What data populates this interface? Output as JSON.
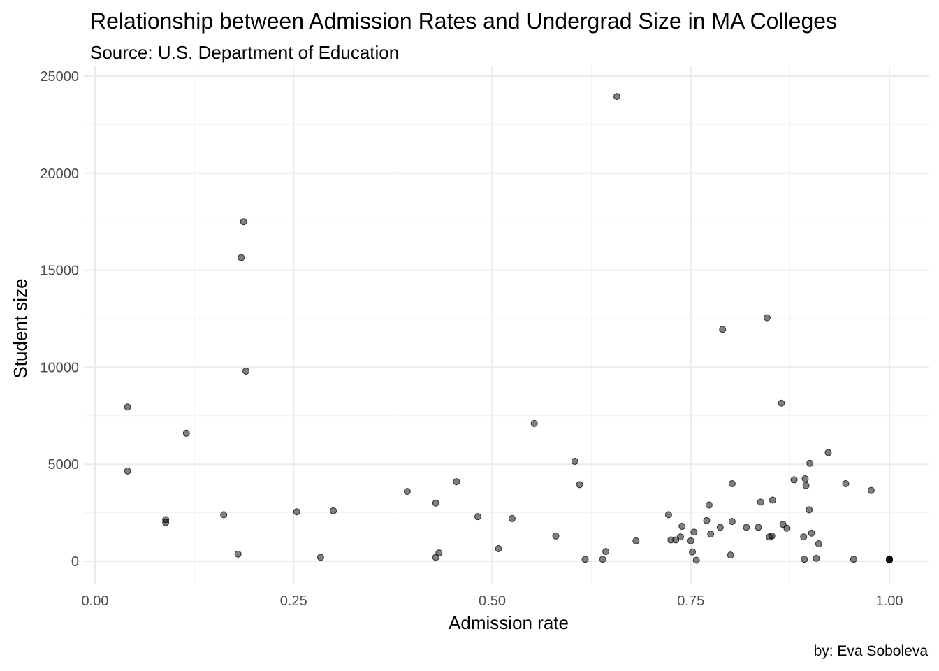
{
  "chart_data": {
    "type": "scatter",
    "title": "Relationship between Admission Rates and Undergrad Size in MA Colleges",
    "subtitle": "Source: U.S. Department of Education",
    "caption": "by: Eva Soboleva",
    "xlabel": "Admission rate",
    "ylabel": "Student size",
    "xlim": [
      -0.02,
      1.04
    ],
    "ylim": [
      -1200,
      25000
    ],
    "x_ticks": [
      "0.00",
      "0.25",
      "0.50",
      "0.75",
      "1.00"
    ],
    "y_ticks": [
      "0",
      "5000",
      "10000",
      "15000",
      "20000",
      "25000"
    ],
    "grid": true,
    "legend": "none",
    "point_color": "#000000",
    "point_opacity": 0.5,
    "points": [
      {
        "x": 0.041,
        "y": 7950
      },
      {
        "x": 0.041,
        "y": 4650
      },
      {
        "x": 0.089,
        "y": 2150
      },
      {
        "x": 0.089,
        "y": 2000
      },
      {
        "x": 0.115,
        "y": 6600
      },
      {
        "x": 0.162,
        "y": 2400
      },
      {
        "x": 0.18,
        "y": 370
      },
      {
        "x": 0.184,
        "y": 15650
      },
      {
        "x": 0.187,
        "y": 17500
      },
      {
        "x": 0.19,
        "y": 9800
      },
      {
        "x": 0.254,
        "y": 2550
      },
      {
        "x": 0.284,
        "y": 200
      },
      {
        "x": 0.3,
        "y": 2600
      },
      {
        "x": 0.393,
        "y": 3600
      },
      {
        "x": 0.429,
        "y": 3000
      },
      {
        "x": 0.429,
        "y": 200
      },
      {
        "x": 0.433,
        "y": 430
      },
      {
        "x": 0.455,
        "y": 4100
      },
      {
        "x": 0.482,
        "y": 2300
      },
      {
        "x": 0.508,
        "y": 650
      },
      {
        "x": 0.525,
        "y": 2200
      },
      {
        "x": 0.553,
        "y": 7100
      },
      {
        "x": 0.58,
        "y": 1300
      },
      {
        "x": 0.604,
        "y": 5150
      },
      {
        "x": 0.61,
        "y": 3950
      },
      {
        "x": 0.617,
        "y": 100
      },
      {
        "x": 0.639,
        "y": 100
      },
      {
        "x": 0.643,
        "y": 500
      },
      {
        "x": 0.657,
        "y": 23950
      },
      {
        "x": 0.681,
        "y": 1050
      },
      {
        "x": 0.722,
        "y": 2400
      },
      {
        "x": 0.725,
        "y": 1100
      },
      {
        "x": 0.731,
        "y": 1100
      },
      {
        "x": 0.737,
        "y": 1250
      },
      {
        "x": 0.739,
        "y": 1800
      },
      {
        "x": 0.75,
        "y": 1050
      },
      {
        "x": 0.752,
        "y": 480
      },
      {
        "x": 0.754,
        "y": 1500
      },
      {
        "x": 0.757,
        "y": 50
      },
      {
        "x": 0.77,
        "y": 2100
      },
      {
        "x": 0.773,
        "y": 2900
      },
      {
        "x": 0.775,
        "y": 1400
      },
      {
        "x": 0.787,
        "y": 1750
      },
      {
        "x": 0.79,
        "y": 11950
      },
      {
        "x": 0.8,
        "y": 320
      },
      {
        "x": 0.802,
        "y": 4000
      },
      {
        "x": 0.802,
        "y": 2050
      },
      {
        "x": 0.82,
        "y": 1750
      },
      {
        "x": 0.835,
        "y": 1750
      },
      {
        "x": 0.838,
        "y": 3050
      },
      {
        "x": 0.846,
        "y": 12550
      },
      {
        "x": 0.849,
        "y": 1250
      },
      {
        "x": 0.852,
        "y": 1300
      },
      {
        "x": 0.853,
        "y": 3150
      },
      {
        "x": 0.864,
        "y": 8150
      },
      {
        "x": 0.866,
        "y": 1900
      },
      {
        "x": 0.871,
        "y": 1700
      },
      {
        "x": 0.88,
        "y": 4200
      },
      {
        "x": 0.892,
        "y": 1250
      },
      {
        "x": 0.893,
        "y": 100
      },
      {
        "x": 0.894,
        "y": 4250
      },
      {
        "x": 0.895,
        "y": 3900
      },
      {
        "x": 0.899,
        "y": 2650
      },
      {
        "x": 0.9,
        "y": 5050
      },
      {
        "x": 0.902,
        "y": 1450
      },
      {
        "x": 0.908,
        "y": 150
      },
      {
        "x": 0.911,
        "y": 900
      },
      {
        "x": 0.923,
        "y": 5600
      },
      {
        "x": 0.945,
        "y": 4000
      },
      {
        "x": 0.955,
        "y": 100
      },
      {
        "x": 0.977,
        "y": 3650
      },
      {
        "x": 1.0,
        "y": 100
      },
      {
        "x": 1.0,
        "y": 80
      },
      {
        "x": 1.0,
        "y": 120
      },
      {
        "x": 1.0,
        "y": 60
      }
    ]
  }
}
